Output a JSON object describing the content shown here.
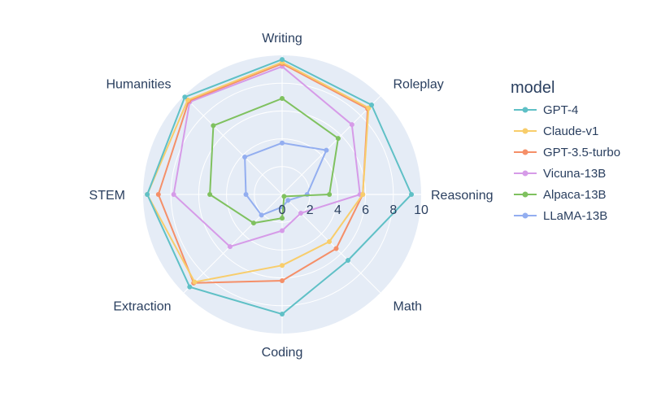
{
  "chart_data": {
    "type": "radar",
    "axes": [
      "Writing",
      "Roleplay",
      "Reasoning",
      "Math",
      "Coding",
      "Extraction",
      "STEM",
      "Humanities"
    ],
    "rlim": [
      0,
      10
    ],
    "radial_ticks": [
      "0",
      "2",
      "4",
      "6",
      "8",
      "10"
    ],
    "grid": true,
    "legend": {
      "title": "model",
      "position": "right"
    },
    "series": [
      {
        "name": "GPT-4",
        "color": "#5fc0c6",
        "values": [
          9.7,
          9.1,
          9.3,
          6.7,
          8.6,
          9.4,
          9.7,
          9.9
        ]
      },
      {
        "name": "Claude-v1",
        "color": "#f8cd6b",
        "values": [
          9.5,
          8.8,
          5.8,
          4.8,
          5.1,
          8.9,
          9.7,
          9.6
        ]
      },
      {
        "name": "GPT-3.5-turbo",
        "color": "#f58f68",
        "values": [
          9.4,
          8.7,
          5.8,
          5.5,
          6.2,
          9.0,
          8.9,
          9.5
        ]
      },
      {
        "name": "Vicuna-13B",
        "color": "#d69be8",
        "values": [
          9.2,
          7.1,
          5.6,
          1.9,
          2.6,
          5.3,
          7.8,
          9.4
        ]
      },
      {
        "name": "Alpaca-13B",
        "color": "#7fc15f",
        "values": [
          6.9,
          5.7,
          3.4,
          0.2,
          1.7,
          2.9,
          5.2,
          7.0
        ]
      },
      {
        "name": "LLaMA-13B",
        "color": "#93aef0",
        "values": [
          3.7,
          4.5,
          1.8,
          0.6,
          0.9,
          2.1,
          2.6,
          3.8
        ]
      }
    ]
  }
}
